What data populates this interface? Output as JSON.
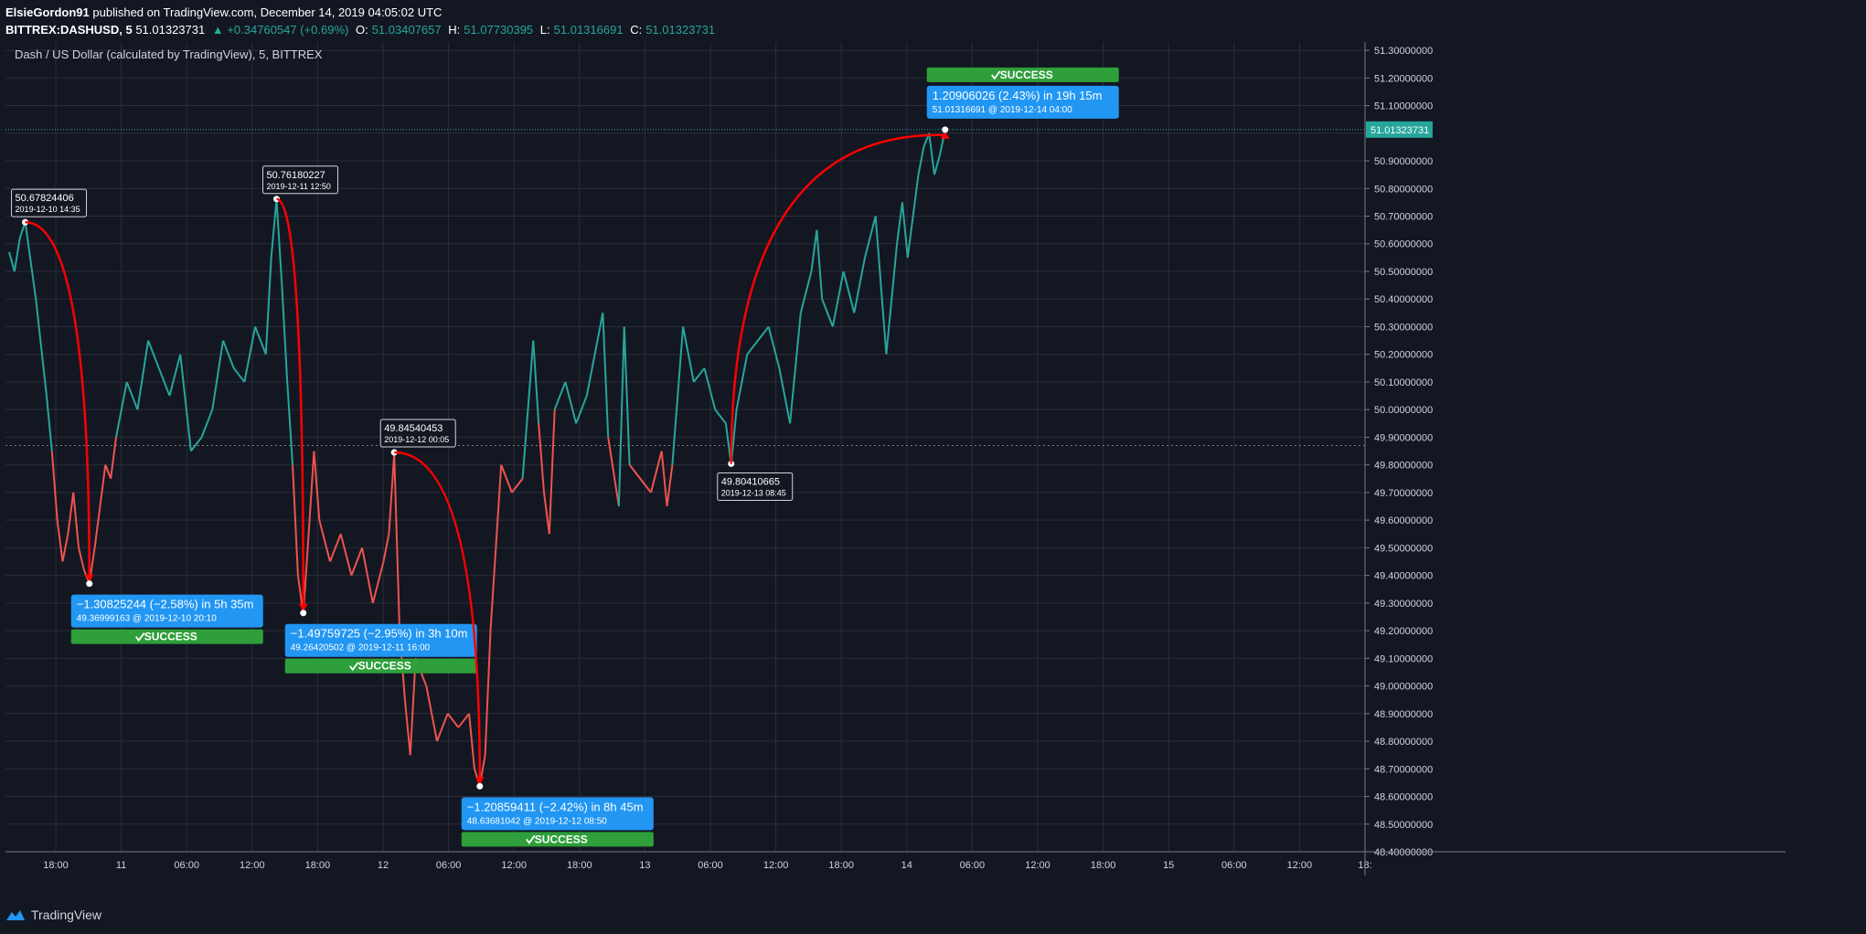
{
  "header": {
    "author": "ElsieGordon91",
    "published": "published on TradingView.com, December 14, 2019 04:05:02 UTC",
    "symbol": "BITTREX:DASHUSD, 5",
    "last": "51.01323731",
    "change": "▲ +0.34760547 (+0.69%)",
    "o_label": "O:",
    "o": "51.03407657",
    "h_label": "H:",
    "h": "51.07730395",
    "l_label": "L:",
    "l": "51.01316691",
    "c_label": "C:",
    "c": "51.01323731"
  },
  "chart_title": "Dash / US Dollar (calculated by TradingView), 5, BITTREX",
  "footer": {
    "brand": "TradingView",
    "brand_icon": "tradingview-logo-icon"
  },
  "colors": {
    "background": "#131722",
    "up": "#26a69a",
    "down": "#ef5350",
    "arrow": "#ff0000",
    "label_blue": "#2196f3",
    "success_green": "#2e9f3a",
    "grid": "#2a2e39"
  },
  "chart_data": {
    "type": "line",
    "ylim": [
      48.4,
      51.33
    ],
    "baseline": 49.87,
    "last_price": "51.01323731",
    "y_ticks": [
      "51.30000000",
      "51.20000000",
      "51.10000000",
      "51.00000000",
      "50.90000000",
      "50.80000000",
      "50.70000000",
      "50.60000000",
      "50.50000000",
      "50.40000000",
      "50.30000000",
      "50.20000000",
      "50.10000000",
      "50.00000000",
      "49.90000000",
      "49.80000000",
      "49.70000000",
      "49.60000000",
      "49.50000000",
      "49.40000000",
      "49.30000000",
      "49.20000000",
      "49.10000000",
      "49.00000000",
      "48.90000000",
      "48.80000000",
      "48.70000000",
      "48.60000000",
      "48.50000000",
      "48.40000000"
    ],
    "x_ticks": [
      "18:00",
      "11",
      "06:00",
      "12:00",
      "18:00",
      "12",
      "06:00",
      "12:00",
      "18:00",
      "13",
      "06:00",
      "12:00",
      "18:00",
      "14",
      "06:00",
      "12:00",
      "18:00",
      "15",
      "06:00",
      "12:00",
      "18:"
    ],
    "series": [
      {
        "points": [
          [
            0,
            50.57
          ],
          [
            1,
            50.5
          ],
          [
            2,
            50.62
          ],
          [
            3,
            50.68
          ],
          [
            5,
            50.4
          ],
          [
            7,
            50.05
          ],
          [
            8,
            49.85
          ],
          [
            9,
            49.6
          ],
          [
            10,
            49.45
          ],
          [
            11,
            49.55
          ],
          [
            12,
            49.7
          ],
          [
            13,
            49.5
          ],
          [
            14,
            49.42
          ],
          [
            15,
            49.37
          ],
          [
            16,
            49.5
          ],
          [
            17,
            49.65
          ],
          [
            18,
            49.8
          ],
          [
            19,
            49.75
          ],
          [
            20,
            49.9
          ],
          [
            22,
            50.1
          ],
          [
            24,
            50.0
          ],
          [
            26,
            50.25
          ],
          [
            28,
            50.15
          ],
          [
            30,
            50.05
          ],
          [
            32,
            50.2
          ],
          [
            34,
            49.85
          ],
          [
            36,
            49.9
          ],
          [
            38,
            50.0
          ],
          [
            40,
            50.25
          ],
          [
            42,
            50.15
          ],
          [
            44,
            50.1
          ],
          [
            46,
            50.3
          ],
          [
            48,
            50.2
          ],
          [
            49,
            50.55
          ],
          [
            50,
            50.76
          ],
          [
            51,
            50.45
          ],
          [
            52,
            50.1
          ],
          [
            53,
            49.8
          ],
          [
            54,
            49.4
          ],
          [
            55,
            49.26
          ],
          [
            56,
            49.55
          ],
          [
            57,
            49.85
          ],
          [
            58,
            49.6
          ],
          [
            60,
            49.45
          ],
          [
            62,
            49.55
          ],
          [
            64,
            49.4
          ],
          [
            66,
            49.5
          ],
          [
            68,
            49.3
          ],
          [
            70,
            49.45
          ],
          [
            71,
            49.55
          ],
          [
            72,
            49.84
          ],
          [
            73,
            49.2
          ],
          [
            74,
            48.95
          ],
          [
            75,
            48.75
          ],
          [
            76,
            49.1
          ],
          [
            78,
            49.0
          ],
          [
            80,
            48.8
          ],
          [
            82,
            48.9
          ],
          [
            84,
            48.85
          ],
          [
            86,
            48.9
          ],
          [
            87,
            48.7
          ],
          [
            88,
            48.64
          ],
          [
            89,
            48.75
          ],
          [
            90,
            49.2
          ],
          [
            91,
            49.5
          ],
          [
            92,
            49.8
          ],
          [
            94,
            49.7
          ],
          [
            96,
            49.75
          ],
          [
            98,
            50.25
          ],
          [
            99,
            49.95
          ],
          [
            100,
            49.7
          ],
          [
            101,
            49.55
          ],
          [
            102,
            50.0
          ],
          [
            104,
            50.1
          ],
          [
            106,
            49.95
          ],
          [
            108,
            50.05
          ],
          [
            110,
            50.25
          ],
          [
            111,
            50.35
          ],
          [
            112,
            49.9
          ],
          [
            114,
            49.65
          ],
          [
            115,
            50.3
          ],
          [
            116,
            49.8
          ],
          [
            118,
            49.75
          ],
          [
            120,
            49.7
          ],
          [
            122,
            49.85
          ],
          [
            123,
            49.65
          ],
          [
            124,
            49.8
          ],
          [
            126,
            50.3
          ],
          [
            128,
            50.1
          ],
          [
            130,
            50.15
          ],
          [
            132,
            50.0
          ],
          [
            134,
            49.95
          ],
          [
            135,
            49.8
          ],
          [
            136,
            50.0
          ],
          [
            138,
            50.2
          ],
          [
            140,
            50.25
          ],
          [
            142,
            50.3
          ],
          [
            144,
            50.15
          ],
          [
            146,
            49.95
          ],
          [
            148,
            50.35
          ],
          [
            150,
            50.5
          ],
          [
            151,
            50.65
          ],
          [
            152,
            50.4
          ],
          [
            154,
            50.3
          ],
          [
            156,
            50.5
          ],
          [
            158,
            50.35
          ],
          [
            160,
            50.55
          ],
          [
            162,
            50.7
          ],
          [
            164,
            50.2
          ],
          [
            166,
            50.6
          ],
          [
            167,
            50.75
          ],
          [
            168,
            50.55
          ],
          [
            170,
            50.85
          ],
          [
            171,
            50.95
          ],
          [
            172,
            51.0
          ],
          [
            173,
            50.85
          ],
          [
            174,
            50.92
          ],
          [
            175,
            51.01
          ]
        ]
      }
    ],
    "annotations": [
      {
        "type": "peak",
        "value": "50.67824406",
        "time": "2019-12-10 14:35"
      },
      {
        "type": "peak",
        "value": "50.76180227",
        "time": "2019-12-11 12:50"
      },
      {
        "type": "peak",
        "value": "49.84540453",
        "time": "2019-12-12 00:05"
      },
      {
        "type": "trough",
        "value": "49.80410665",
        "time": "2019-12-13 08:45"
      }
    ],
    "measurements": [
      {
        "text": "−1.30825244 (−2.58%) in 5h 35m",
        "sub": "49.36999163 @ 2019-12-10  20:10",
        "status": "SUCCESS"
      },
      {
        "text": "−1.49759725 (−2.95%) in 3h 10m",
        "sub": "49.26420502 @ 2019-12-11  16:00",
        "status": "SUCCESS"
      },
      {
        "text": "−1.20859411 (−2.42%) in 8h 45m",
        "sub": "48.63681042 @ 2019-12-12  08:50",
        "status": "SUCCESS"
      },
      {
        "text": "1.20906026 (2.43%) in 19h 15m",
        "sub": "51.01316691 @ 2019-12-14  04:00",
        "status": "SUCCESS"
      }
    ],
    "success_icon": "check-icon"
  }
}
